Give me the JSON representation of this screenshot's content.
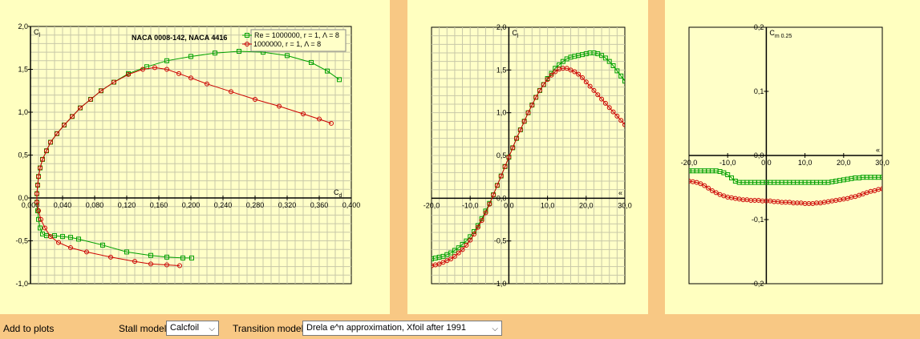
{
  "chart_data": [
    {
      "type": "line",
      "title": "NACA 0008-142, NACA 4416",
      "xlabel": "Cd",
      "ylabel": "Cl",
      "xlim": [
        0,
        0.4
      ],
      "ylim": [
        -1.0,
        2.0
      ],
      "x_ticks": [
        "0,000",
        "0,040",
        "0,080",
        "0,120",
        "0,160",
        "0,200",
        "0,240",
        "0,280",
        "0,320",
        "0,360",
        "0,400"
      ],
      "y_ticks": [
        "-1,0",
        "-0,5",
        "0,0",
        "0,5",
        "1,0",
        "1,5",
        "2,0"
      ],
      "grid": true,
      "series": [
        {
          "name": "Re = 1000000, r = 1, Λ = 8",
          "color": "#00a000",
          "marker": "square",
          "points": [
            [
              0.201,
              -0.7
            ],
            [
              0.19,
              -0.7
            ],
            [
              0.17,
              -0.69
            ],
            [
              0.15,
              -0.67
            ],
            [
              0.12,
              -0.63
            ],
            [
              0.09,
              -0.55
            ],
            [
              0.06,
              -0.48
            ],
            [
              0.05,
              -0.46
            ],
            [
              0.04,
              -0.45
            ],
            [
              0.03,
              -0.44
            ],
            [
              0.02,
              -0.44
            ],
            [
              0.015,
              -0.42
            ],
            [
              0.012,
              -0.35
            ],
            [
              0.01,
              -0.25
            ],
            [
              0.009,
              -0.15
            ],
            [
              0.008,
              -0.05
            ],
            [
              0.008,
              0.05
            ],
            [
              0.009,
              0.15
            ],
            [
              0.01,
              0.25
            ],
            [
              0.012,
              0.35
            ],
            [
              0.015,
              0.45
            ],
            [
              0.02,
              0.55
            ],
            [
              0.025,
              0.65
            ],
            [
              0.033,
              0.75
            ],
            [
              0.042,
              0.85
            ],
            [
              0.052,
              0.95
            ],
            [
              0.062,
              1.05
            ],
            [
              0.075,
              1.15
            ],
            [
              0.088,
              1.25
            ],
            [
              0.104,
              1.35
            ],
            [
              0.122,
              1.45
            ],
            [
              0.145,
              1.53
            ],
            [
              0.17,
              1.6
            ],
            [
              0.2,
              1.65
            ],
            [
              0.23,
              1.69
            ],
            [
              0.26,
              1.71
            ],
            [
              0.29,
              1.7
            ],
            [
              0.32,
              1.66
            ],
            [
              0.35,
              1.58
            ],
            [
              0.37,
              1.48
            ],
            [
              0.385,
              1.38
            ]
          ]
        },
        {
          "name": "1000000, r = 1, Λ = 8",
          "color": "#cc0000",
          "marker": "circle",
          "points": [
            [
              0.186,
              -0.79
            ],
            [
              0.17,
              -0.78
            ],
            [
              0.15,
              -0.77
            ],
            [
              0.13,
              -0.74
            ],
            [
              0.1,
              -0.69
            ],
            [
              0.07,
              -0.63
            ],
            [
              0.05,
              -0.58
            ],
            [
              0.035,
              -0.52
            ],
            [
              0.025,
              -0.45
            ],
            [
              0.018,
              -0.35
            ],
            [
              0.013,
              -0.25
            ],
            [
              0.01,
              -0.15
            ],
            [
              0.008,
              -0.05
            ],
            [
              0.008,
              0.05
            ],
            [
              0.009,
              0.15
            ],
            [
              0.01,
              0.25
            ],
            [
              0.012,
              0.35
            ],
            [
              0.015,
              0.45
            ],
            [
              0.02,
              0.55
            ],
            [
              0.025,
              0.65
            ],
            [
              0.033,
              0.75
            ],
            [
              0.042,
              0.85
            ],
            [
              0.052,
              0.95
            ],
            [
              0.062,
              1.05
            ],
            [
              0.075,
              1.15
            ],
            [
              0.088,
              1.25
            ],
            [
              0.104,
              1.35
            ],
            [
              0.122,
              1.44
            ],
            [
              0.14,
              1.5
            ],
            [
              0.155,
              1.52
            ],
            [
              0.17,
              1.5
            ],
            [
              0.185,
              1.45
            ],
            [
              0.2,
              1.4
            ],
            [
              0.22,
              1.33
            ],
            [
              0.25,
              1.24
            ],
            [
              0.28,
              1.15
            ],
            [
              0.31,
              1.07
            ],
            [
              0.34,
              0.98
            ],
            [
              0.36,
              0.92
            ],
            [
              0.375,
              0.87
            ]
          ]
        }
      ]
    },
    {
      "type": "line",
      "xlabel": "α",
      "ylabel": "Cl",
      "xlim": [
        -20,
        30
      ],
      "ylim": [
        -1.0,
        2.0
      ],
      "x_ticks": [
        "-20,0",
        "-10,0",
        "0,0",
        "10,0",
        "20,0",
        "30,0"
      ],
      "y_ticks": [
        "-1,0",
        "-0,5",
        "0,0",
        "0,5",
        "1,0",
        "1,5",
        "2,0"
      ],
      "grid": true,
      "series": [
        {
          "color": "#00a000",
          "marker": "square",
          "x": [
            -20,
            -19,
            -18,
            -17,
            -16,
            -15,
            -14,
            -13,
            -12,
            -11,
            -10,
            -9,
            -8,
            -7,
            -6,
            -5,
            -4,
            -3,
            -2,
            -1,
            0,
            1,
            2,
            3,
            4,
            5,
            6,
            7,
            8,
            9,
            10,
            11,
            12,
            13,
            14,
            15,
            16,
            17,
            18,
            19,
            20,
            21,
            22,
            23,
            24,
            25,
            26,
            27,
            28,
            29,
            30
          ],
          "y": [
            -0.71,
            -0.7,
            -0.69,
            -0.68,
            -0.66,
            -0.64,
            -0.61,
            -0.58,
            -0.54,
            -0.5,
            -0.45,
            -0.39,
            -0.32,
            -0.24,
            -0.15,
            -0.06,
            0.04,
            0.15,
            0.26,
            0.37,
            0.48,
            0.59,
            0.7,
            0.8,
            0.9,
            1.0,
            1.09,
            1.18,
            1.26,
            1.33,
            1.4,
            1.46,
            1.52,
            1.56,
            1.6,
            1.63,
            1.65,
            1.66,
            1.67,
            1.68,
            1.69,
            1.7,
            1.7,
            1.69,
            1.67,
            1.64,
            1.6,
            1.55,
            1.49,
            1.43,
            1.37
          ]
        },
        {
          "color": "#cc0000",
          "marker": "circle",
          "x": [
            -20,
            -19,
            -18,
            -17,
            -16,
            -15,
            -14,
            -13,
            -12,
            -11,
            -10,
            -9,
            -8,
            -7,
            -6,
            -5,
            -4,
            -3,
            -2,
            -1,
            0,
            1,
            2,
            3,
            4,
            5,
            6,
            7,
            8,
            9,
            10,
            11,
            12,
            13,
            14,
            15,
            16,
            17,
            18,
            19,
            20,
            21,
            22,
            23,
            24,
            25,
            26,
            27,
            28,
            29,
            30
          ],
          "y": [
            -0.79,
            -0.78,
            -0.77,
            -0.75,
            -0.73,
            -0.71,
            -0.68,
            -0.64,
            -0.6,
            -0.55,
            -0.49,
            -0.42,
            -0.34,
            -0.26,
            -0.17,
            -0.07,
            0.04,
            0.15,
            0.26,
            0.37,
            0.48,
            0.59,
            0.7,
            0.8,
            0.9,
            1.0,
            1.09,
            1.18,
            1.26,
            1.33,
            1.39,
            1.44,
            1.48,
            1.51,
            1.52,
            1.52,
            1.5,
            1.48,
            1.45,
            1.41,
            1.36,
            1.31,
            1.26,
            1.21,
            1.16,
            1.11,
            1.06,
            1.01,
            0.96,
            0.91,
            0.86
          ]
        }
      ]
    },
    {
      "type": "line",
      "xlabel": "α",
      "ylabel": "Cm 0.25",
      "xlim": [
        -20,
        30
      ],
      "ylim": [
        -0.2,
        0.2
      ],
      "x_ticks": [
        "-20,0",
        "-10,0",
        "0,0",
        "10,0",
        "20,0",
        "30,0"
      ],
      "y_ticks": [
        "-0,2",
        "-0,1",
        "0,0",
        "0,1",
        "0,2"
      ],
      "grid": false,
      "series": [
        {
          "color": "#00a000",
          "marker": "square",
          "x": [
            -20,
            -19,
            -18,
            -17,
            -16,
            -15,
            -14,
            -13,
            -12,
            -11,
            -10,
            -9,
            -8,
            -7,
            -6,
            -5,
            -4,
            -3,
            -2,
            -1,
            0,
            1,
            2,
            3,
            4,
            5,
            6,
            7,
            8,
            9,
            10,
            11,
            12,
            13,
            14,
            15,
            16,
            17,
            18,
            19,
            20,
            21,
            22,
            23,
            24,
            25,
            26,
            27,
            28,
            29,
            30
          ],
          "y": [
            -0.024,
            -0.024,
            -0.024,
            -0.024,
            -0.024,
            -0.024,
            -0.024,
            -0.024,
            -0.025,
            -0.027,
            -0.03,
            -0.035,
            -0.04,
            -0.042,
            -0.042,
            -0.042,
            -0.042,
            -0.042,
            -0.042,
            -0.042,
            -0.042,
            -0.042,
            -0.042,
            -0.042,
            -0.042,
            -0.042,
            -0.042,
            -0.042,
            -0.042,
            -0.042,
            -0.042,
            -0.042,
            -0.042,
            -0.042,
            -0.042,
            -0.042,
            -0.042,
            -0.041,
            -0.04,
            -0.039,
            -0.038,
            -0.037,
            -0.036,
            -0.035,
            -0.035,
            -0.034,
            -0.034,
            -0.034,
            -0.034,
            -0.034,
            -0.034
          ]
        },
        {
          "color": "#cc0000",
          "marker": "circle",
          "x": [
            -20,
            -19,
            -18,
            -17,
            -16,
            -15,
            -14,
            -13,
            -12,
            -11,
            -10,
            -9,
            -8,
            -7,
            -6,
            -5,
            -4,
            -3,
            -2,
            -1,
            0,
            1,
            2,
            3,
            4,
            5,
            6,
            7,
            8,
            9,
            10,
            11,
            12,
            13,
            14,
            15,
            16,
            17,
            18,
            19,
            20,
            21,
            22,
            23,
            24,
            25,
            26,
            27,
            28,
            29,
            30
          ],
          "y": [
            -0.04,
            -0.041,
            -0.042,
            -0.044,
            -0.047,
            -0.051,
            -0.055,
            -0.058,
            -0.061,
            -0.063,
            -0.065,
            -0.066,
            -0.067,
            -0.068,
            -0.069,
            -0.069,
            -0.07,
            -0.07,
            -0.07,
            -0.071,
            -0.071,
            -0.071,
            -0.072,
            -0.072,
            -0.073,
            -0.073,
            -0.073,
            -0.074,
            -0.074,
            -0.074,
            -0.075,
            -0.075,
            -0.075,
            -0.074,
            -0.074,
            -0.073,
            -0.072,
            -0.071,
            -0.07,
            -0.069,
            -0.068,
            -0.067,
            -0.065,
            -0.064,
            -0.062,
            -0.06,
            -0.058,
            -0.056,
            -0.055,
            -0.053,
            -0.052
          ]
        }
      ]
    }
  ],
  "bottom": {
    "add_to_plots": "Add to plots",
    "stall_label": "Stall model:",
    "stall_value": "Calcfoil",
    "transition_label": "Transition model:",
    "transition_value": "Drela e^n approximation, Xfoil after 1991"
  }
}
